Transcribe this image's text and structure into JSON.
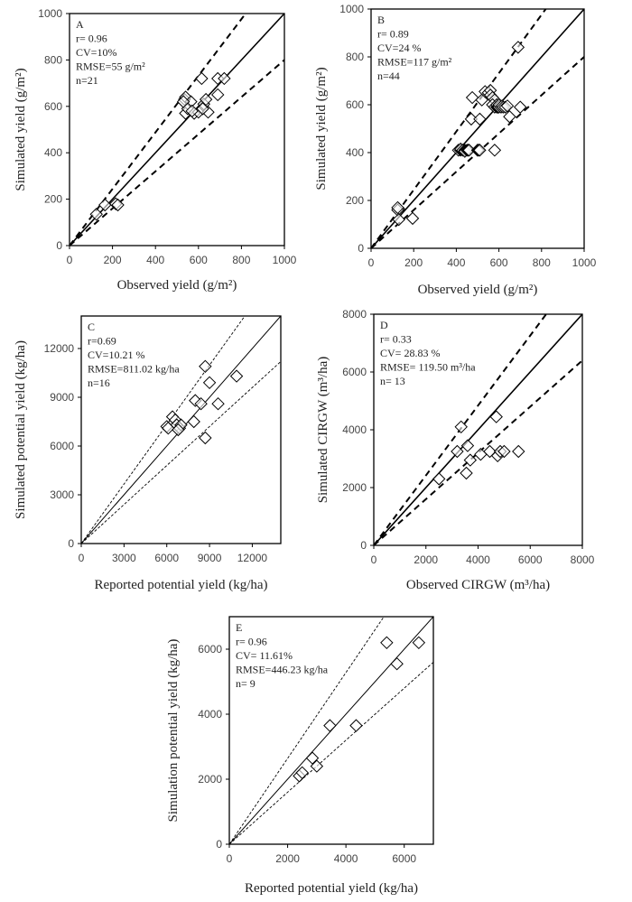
{
  "chart_data": [
    {
      "type": "scatter",
      "panel": "A",
      "stats": [
        "A",
        "r= 0.96",
        "CV=10%",
        "RMSE=55 g/m²",
        "n=21"
      ],
      "xlabel": "Observed yield (g/m²)",
      "ylabel": "Simulated yield (g/m²)",
      "xlim": [
        0,
        1000
      ],
      "ylim": [
        0,
        1000
      ],
      "xticks": [
        "0",
        "200",
        "400",
        "600",
        "800",
        "1000"
      ],
      "yticks": [
        "0",
        "200",
        "400",
        "600",
        "800",
        "1000"
      ],
      "reference_lines": {
        "one_to_one": 1.0,
        "upper_slope": 1.22,
        "lower_slope": 0.8,
        "line_style": "thick-dashed"
      },
      "points": [
        [
          125,
          135
        ],
        [
          165,
          175
        ],
        [
          215,
          180
        ],
        [
          225,
          175
        ],
        [
          535,
          630
        ],
        [
          540,
          640
        ],
        [
          565,
          620
        ],
        [
          540,
          570
        ],
        [
          550,
          590
        ],
        [
          580,
          570
        ],
        [
          600,
          575
        ],
        [
          615,
          720
        ],
        [
          625,
          610
        ],
        [
          635,
          630
        ],
        [
          645,
          575
        ],
        [
          690,
          650
        ],
        [
          690,
          720
        ],
        [
          720,
          720
        ],
        [
          530,
          620
        ],
        [
          570,
          580
        ],
        [
          620,
          590
        ]
      ]
    },
    {
      "type": "scatter",
      "panel": "B",
      "stats": [
        "B",
        "r= 0.89",
        "CV=24 %",
        "RMSE=117 g/m²",
        "n=44"
      ],
      "xlabel": "Observed yield (g/m²)",
      "ylabel": "Simulated yield (g/m²)",
      "xlim": [
        0,
        1000
      ],
      "ylim": [
        0,
        1000
      ],
      "xticks": [
        "0",
        "200",
        "400",
        "600",
        "800",
        "1000"
      ],
      "yticks": [
        "0",
        "200",
        "400",
        "600",
        "800",
        "1000"
      ],
      "reference_lines": {
        "one_to_one": 1.0,
        "upper_slope": 1.22,
        "lower_slope": 0.8,
        "line_style": "thick-dashed"
      },
      "points": [
        [
          130,
          165
        ],
        [
          125,
          160
        ],
        [
          125,
          170
        ],
        [
          130,
          120
        ],
        [
          195,
          125
        ],
        [
          410,
          410
        ],
        [
          420,
          410
        ],
        [
          420,
          415
        ],
        [
          430,
          410
        ],
        [
          440,
          410
        ],
        [
          440,
          405
        ],
        [
          450,
          410
        ],
        [
          455,
          410
        ],
        [
          460,
          410
        ],
        [
          500,
          410
        ],
        [
          500,
          410
        ],
        [
          505,
          410
        ],
        [
          510,
          410
        ],
        [
          580,
          410
        ],
        [
          470,
          540
        ],
        [
          510,
          540
        ],
        [
          475,
          630
        ],
        [
          520,
          620
        ],
        [
          535,
          655
        ],
        [
          550,
          650
        ],
        [
          560,
          660
        ],
        [
          560,
          640
        ],
        [
          570,
          630
        ],
        [
          580,
          620
        ],
        [
          570,
          600
        ],
        [
          580,
          590
        ],
        [
          590,
          590
        ],
        [
          590,
          600
        ],
        [
          595,
          590
        ],
        [
          600,
          590
        ],
        [
          600,
          600
        ],
        [
          610,
          590
        ],
        [
          615,
          595
        ],
        [
          620,
          590
        ],
        [
          630,
          590
        ],
        [
          640,
          595
        ],
        [
          650,
          550
        ],
        [
          700,
          590
        ],
        [
          690,
          840
        ]
      ]
    },
    {
      "type": "scatter",
      "panel": "C",
      "stats": [
        "C",
        "r=0.69",
        "CV=10.21 %",
        "RMSE=811.02 kg/ha",
        "n=16"
      ],
      "xlabel": "Reported potential yield (kg/ha)",
      "ylabel": "Simulated potential yield (kg/ha)",
      "xlim": [
        0,
        14000
      ],
      "ylim": [
        0,
        14000
      ],
      "xticks": [
        "0",
        "3000",
        "6000",
        "9000",
        "12000"
      ],
      "yticks": [
        "0",
        "3000",
        "6000",
        "9000",
        "12000"
      ],
      "reference_lines": {
        "one_to_one": 1.0,
        "upper_slope": 1.22,
        "lower_slope": 0.8,
        "line_style": "thin-dashed"
      },
      "points": [
        [
          8700,
          10900
        ],
        [
          9000,
          9900
        ],
        [
          10900,
          10300
        ],
        [
          8000,
          8800
        ],
        [
          8400,
          8600
        ],
        [
          9600,
          8600
        ],
        [
          7900,
          7500
        ],
        [
          8700,
          6500
        ],
        [
          6400,
          7800
        ],
        [
          6600,
          7600
        ],
        [
          6000,
          7200
        ],
        [
          6100,
          7100
        ],
        [
          6700,
          7300
        ],
        [
          6900,
          7100
        ],
        [
          7000,
          7300
        ],
        [
          6800,
          7000
        ]
      ]
    },
    {
      "type": "scatter",
      "panel": "D",
      "stats": [
        "D",
        "r= 0.33",
        "CV= 28.83 %",
        "RMSE= 119.50 m³/ha",
        "n= 13"
      ],
      "xlabel": "Observed CIRGW (m³/ha)",
      "ylabel": "Simulated CIRGW (m³/ha)",
      "xlim": [
        0,
        8000
      ],
      "ylim": [
        0,
        8000
      ],
      "xticks": [
        "0",
        "2000",
        "4000",
        "6000",
        "8000"
      ],
      "yticks": [
        "0",
        "2000",
        "4000",
        "6000",
        "8000"
      ],
      "reference_lines": {
        "one_to_one": 1.0,
        "upper_slope": 1.21,
        "lower_slope": 0.8,
        "line_style": "thick-dashed"
      },
      "points": [
        [
          2500,
          2300
        ],
        [
          3350,
          4100
        ],
        [
          3200,
          3250
        ],
        [
          3600,
          3450
        ],
        [
          3550,
          2500
        ],
        [
          3700,
          2950
        ],
        [
          4100,
          3150
        ],
        [
          4450,
          3250
        ],
        [
          4700,
          4450
        ],
        [
          4750,
          3100
        ],
        [
          4850,
          3250
        ],
        [
          5000,
          3250
        ],
        [
          5550,
          3250
        ]
      ]
    },
    {
      "type": "scatter",
      "panel": "E",
      "stats": [
        "E",
        "r= 0.96",
        "CV= 11.61%",
        "RMSE=446.23 kg/ha",
        "n= 9"
      ],
      "xlabel": "Reported potential yield (kg/ha)",
      "ylabel": "Simulation potential yield (kg/ha)",
      "xlim": [
        0,
        7000
      ],
      "ylim": [
        0,
        7000
      ],
      "xticks": [
        "0",
        "2000",
        "4000",
        "6000"
      ],
      "yticks": [
        "0",
        "2000",
        "4000",
        "6000"
      ],
      "reference_lines": {
        "one_to_one": 1.0,
        "upper_slope": 1.32,
        "lower_slope": 0.8,
        "line_style": "thin-dashed"
      },
      "points": [
        [
          2400,
          2100
        ],
        [
          2500,
          2200
        ],
        [
          2850,
          2650
        ],
        [
          3000,
          2400
        ],
        [
          3450,
          3650
        ],
        [
          4350,
          3650
        ],
        [
          5400,
          6200
        ],
        [
          5750,
          5550
        ],
        [
          6500,
          6200
        ]
      ]
    }
  ]
}
